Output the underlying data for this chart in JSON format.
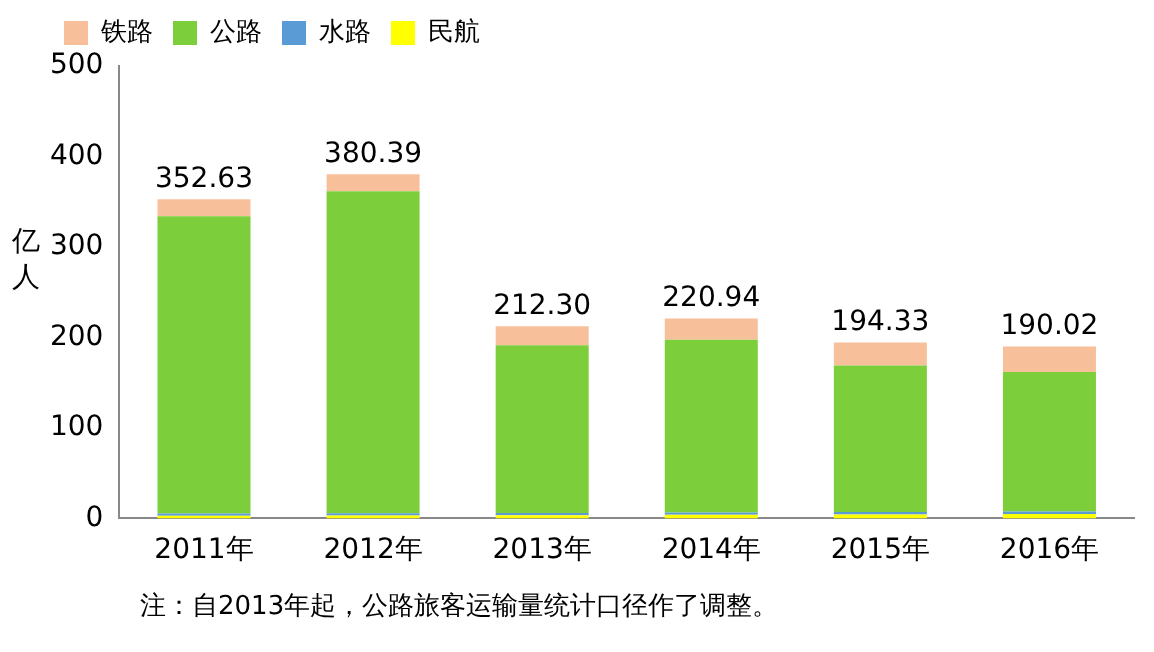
{
  "chart_data": {
    "type": "bar",
    "stacked": true,
    "ylabel": "亿人",
    "categories": [
      "2011年",
      "2012年",
      "2013年",
      "2014年",
      "2015年",
      "2016年"
    ],
    "series": [
      {
        "name": "民航",
        "color": "#ffff00",
        "values": [
          2.93,
          3.19,
          3.54,
          3.92,
          4.36,
          4.88
        ]
      },
      {
        "name": "水路",
        "color": "#5b9bd5",
        "values": [
          2.46,
          2.58,
          2.35,
          2.63,
          2.71,
          2.72
        ]
      },
      {
        "name": "公路",
        "color": "#7ccf3a",
        "values": [
          328.62,
          355.69,
          185.35,
          190.82,
          161.91,
          154.28
        ]
      },
      {
        "name": "铁路",
        "color": "#f7c09a",
        "values": [
          18.62,
          18.93,
          21.06,
          23.57,
          25.35,
          28.14
        ]
      }
    ],
    "totals": [
      "352.63",
      "380.39",
      "212.30",
      "220.94",
      "194.33",
      "190.02"
    ],
    "ylim": [
      0,
      500
    ],
    "yticks": [
      0,
      100,
      200,
      300,
      400,
      500
    ],
    "grid": false,
    "legend": "top left",
    "annotations": [
      "注：自2013年起，公路旅客运输量统计口径作了调整。"
    ]
  }
}
